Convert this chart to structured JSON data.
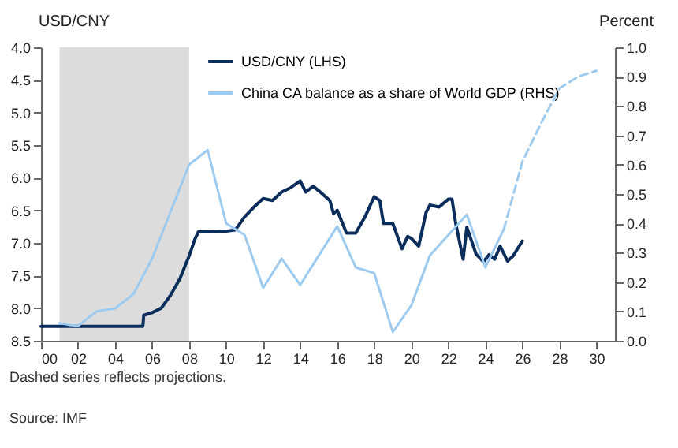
{
  "chart_data": {
    "type": "line",
    "ylabel": "USD/CNY",
    "y2label": "Percent",
    "annotations": [
      "Dashed series reflects projections.",
      "Source: IMF"
    ],
    "xlim": [
      0,
      31
    ],
    "xticks": [
      {
        "value": 0,
        "label": "00"
      },
      {
        "value": 2,
        "label": "02"
      },
      {
        "value": 4,
        "label": "04"
      },
      {
        "value": 6,
        "label": "06"
      },
      {
        "value": 8,
        "label": "08"
      },
      10,
      12,
      14,
      16,
      18,
      20,
      22,
      24,
      26,
      28,
      30
    ],
    "ylim": [
      8.5,
      4.0
    ],
    "yticks": [
      {
        "value": 4,
        "label": "4.0"
      },
      4.5,
      {
        "value": 5,
        "label": "5.0"
      },
      5.5,
      {
        "value": 6,
        "label": "6.0"
      },
      6.5,
      {
        "value": 7,
        "label": "7.0"
      },
      7.5,
      {
        "value": 8,
        "label": "8.0"
      },
      8.5
    ],
    "y2lim": [
      0,
      1.0
    ],
    "y2ticks": [
      {
        "value": 0,
        "label": "0.0"
      },
      0.1,
      0.2,
      0.3,
      0.4,
      0.5,
      0.6,
      0.7,
      0.8,
      0.9,
      {
        "value": 1,
        "label": "1.0"
      }
    ],
    "bands": [
      {
        "axis": "x",
        "from": 1,
        "to": 8,
        "color": "#dcdcdc"
      }
    ],
    "legend": "top",
    "grid": false,
    "marker": "none",
    "series": [
      {
        "name": "USD/CNY (LHS)",
        "color": "#0b2d5b",
        "line_style": "solid",
        "x": [
          0,
          2,
          4,
          5.5,
          5.55,
          6,
          6.5,
          7,
          7.5,
          8,
          8.3,
          8.5,
          9,
          10,
          10.5,
          10.7,
          11,
          11.5,
          12,
          12.5,
          13,
          13.5,
          14,
          14.3,
          14.7,
          15,
          15.6,
          15.8,
          16,
          16.5,
          17,
          17.5,
          18,
          18.3,
          18.5,
          19,
          19.5,
          19.8,
          20,
          20.4,
          20.8,
          21,
          21.5,
          22,
          22.2,
          22.4,
          22.8,
          23,
          23.5,
          23.9,
          24.2,
          24.5,
          24.8,
          25.2,
          25.5,
          26
        ],
        "values": [
          8.28,
          8.28,
          8.28,
          8.28,
          8.11,
          8.07,
          8.0,
          7.8,
          7.55,
          7.2,
          6.95,
          6.83,
          6.83,
          6.82,
          6.8,
          6.72,
          6.6,
          6.45,
          6.32,
          6.35,
          6.22,
          6.15,
          6.05,
          6.22,
          6.13,
          6.2,
          6.35,
          6.55,
          6.5,
          6.85,
          6.85,
          6.6,
          6.29,
          6.35,
          6.7,
          6.7,
          7.09,
          6.9,
          6.93,
          7.05,
          6.53,
          6.42,
          6.45,
          6.33,
          6.33,
          6.7,
          7.25,
          6.76,
          7.17,
          7.29,
          7.18,
          7.25,
          7.05,
          7.28,
          7.2,
          6.97
        ]
      },
      {
        "name": "China CA balance as a share of World GDP (RHS)",
        "color": "#9dcbf0",
        "axis": "y2",
        "line_style": "solid",
        "x": [
          1,
          2,
          3,
          4,
          5,
          6,
          7,
          8,
          9,
          10,
          11,
          12,
          13,
          14,
          15,
          16,
          17,
          18,
          19,
          20,
          21,
          22,
          23,
          24,
          25
        ],
        "values": [
          0.06,
          0.05,
          0.1,
          0.11,
          0.16,
          0.28,
          0.44,
          0.6,
          0.65,
          0.4,
          0.36,
          0.18,
          0.28,
          0.19,
          0.29,
          0.39,
          0.25,
          0.23,
          0.03,
          0.12,
          0.29,
          0.36,
          0.43,
          0.25,
          0.38
        ]
      },
      {
        "color": "#9dcbf0",
        "axis": "y2",
        "line_style": "dashed",
        "x": [
          25,
          26,
          27,
          28,
          29,
          30
        ],
        "values": [
          0.38,
          0.61,
          0.74,
          0.86,
          0.9,
          0.92
        ]
      }
    ]
  }
}
